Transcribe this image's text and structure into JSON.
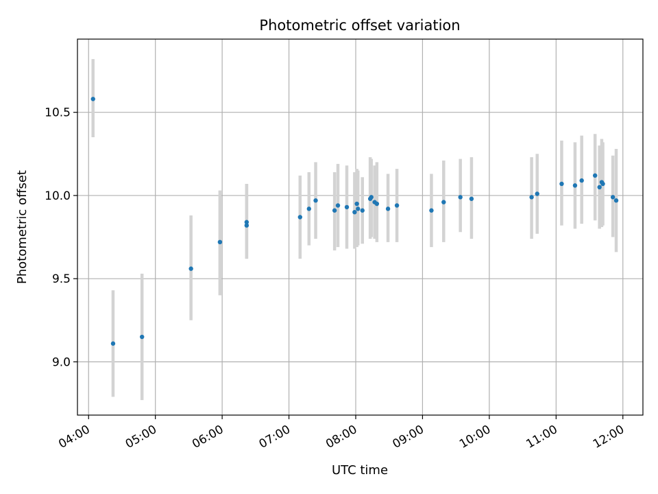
{
  "chart_data": {
    "type": "scatter",
    "title": "Photometric offset variation",
    "xlabel": "UTC time",
    "ylabel": "Photometric offset",
    "x_unit": "hours UTC",
    "xlim": [
      "03:50",
      "12:18"
    ],
    "ylim": [
      8.68,
      10.94
    ],
    "x_ticks": [
      {
        "label": "04:00",
        "value": "04:00"
      },
      {
        "label": "05:00",
        "value": "05:00"
      },
      {
        "label": "06:00",
        "value": "06:00"
      },
      {
        "label": "07:00",
        "value": "07:00"
      },
      {
        "label": "08:00",
        "value": "08:00"
      },
      {
        "label": "09:00",
        "value": "09:00"
      },
      {
        "label": "10:00",
        "value": "10:00"
      },
      {
        "label": "11:00",
        "value": "11:00"
      },
      {
        "label": "12:00",
        "value": "12:00"
      }
    ],
    "y_ticks": [
      {
        "label": "9.0",
        "value": 9.0
      },
      {
        "label": "9.5",
        "value": 9.5
      },
      {
        "label": "10.0",
        "value": 10.0
      },
      {
        "label": "10.5",
        "value": 10.5
      }
    ],
    "grid": true,
    "marker_color": "#1f77b4",
    "errorbar_color": "#d3d3d3",
    "points": [
      {
        "x": "04:04",
        "y": 10.58,
        "yerr_low": 10.35,
        "yerr_high": 10.82
      },
      {
        "x": "04:22",
        "y": 9.11,
        "yerr_low": 8.79,
        "yerr_high": 9.43
      },
      {
        "x": "04:48",
        "y": 9.15,
        "yerr_low": 8.77,
        "yerr_high": 9.53
      },
      {
        "x": "05:32",
        "y": 9.56,
        "yerr_low": 9.25,
        "yerr_high": 9.88
      },
      {
        "x": "05:58",
        "y": 9.72,
        "yerr_low": 9.4,
        "yerr_high": 10.03
      },
      {
        "x": "06:22",
        "y": 9.84,
        "yerr_low": 9.62,
        "yerr_high": 10.07
      },
      {
        "x": "06:22",
        "y": 9.82,
        "yerr_low": 9.62,
        "yerr_high": 10.07
      },
      {
        "x": "07:10",
        "y": 9.87,
        "yerr_low": 9.62,
        "yerr_high": 10.12
      },
      {
        "x": "07:18",
        "y": 9.92,
        "yerr_low": 9.7,
        "yerr_high": 10.14
      },
      {
        "x": "07:24",
        "y": 9.97,
        "yerr_low": 9.74,
        "yerr_high": 10.2
      },
      {
        "x": "07:41",
        "y": 9.91,
        "yerr_low": 9.67,
        "yerr_high": 10.14
      },
      {
        "x": "07:44",
        "y": 9.94,
        "yerr_low": 9.69,
        "yerr_high": 10.19
      },
      {
        "x": "07:52",
        "y": 9.93,
        "yerr_low": 9.68,
        "yerr_high": 10.18
      },
      {
        "x": "07:59",
        "y": 9.9,
        "yerr_low": 9.68,
        "yerr_high": 10.14
      },
      {
        "x": "08:01",
        "y": 9.95,
        "yerr_low": 9.69,
        "yerr_high": 10.16
      },
      {
        "x": "08:02",
        "y": 9.92,
        "yerr_low": 9.7,
        "yerr_high": 10.15
      },
      {
        "x": "08:06",
        "y": 9.91,
        "yerr_low": 9.71,
        "yerr_high": 10.11
      },
      {
        "x": "08:13",
        "y": 9.98,
        "yerr_low": 9.74,
        "yerr_high": 10.23
      },
      {
        "x": "08:14",
        "y": 9.99,
        "yerr_low": 9.75,
        "yerr_high": 10.22
      },
      {
        "x": "08:17",
        "y": 9.96,
        "yerr_low": 9.74,
        "yerr_high": 10.18
      },
      {
        "x": "08:19",
        "y": 9.95,
        "yerr_low": 9.72,
        "yerr_high": 10.2
      },
      {
        "x": "08:29",
        "y": 9.92,
        "yerr_low": 9.72,
        "yerr_high": 10.13
      },
      {
        "x": "08:37",
        "y": 9.94,
        "yerr_low": 9.72,
        "yerr_high": 10.16
      },
      {
        "x": "09:08",
        "y": 9.91,
        "yerr_low": 9.69,
        "yerr_high": 10.13
      },
      {
        "x": "09:19",
        "y": 9.96,
        "yerr_low": 9.72,
        "yerr_high": 10.21
      },
      {
        "x": "09:34",
        "y": 9.99,
        "yerr_low": 9.78,
        "yerr_high": 10.22
      },
      {
        "x": "09:44",
        "y": 9.98,
        "yerr_low": 9.74,
        "yerr_high": 10.23
      },
      {
        "x": "10:38",
        "y": 9.99,
        "yerr_low": 9.74,
        "yerr_high": 10.23
      },
      {
        "x": "10:43",
        "y": 10.01,
        "yerr_low": 9.77,
        "yerr_high": 10.25
      },
      {
        "x": "11:05",
        "y": 10.07,
        "yerr_low": 9.82,
        "yerr_high": 10.33
      },
      {
        "x": "11:17",
        "y": 10.06,
        "yerr_low": 9.8,
        "yerr_high": 10.32
      },
      {
        "x": "11:23",
        "y": 10.09,
        "yerr_low": 9.83,
        "yerr_high": 10.36
      },
      {
        "x": "11:35",
        "y": 10.12,
        "yerr_low": 9.85,
        "yerr_high": 10.37
      },
      {
        "x": "11:39",
        "y": 10.05,
        "yerr_low": 9.8,
        "yerr_high": 10.3
      },
      {
        "x": "11:41",
        "y": 10.08,
        "yerr_low": 9.81,
        "yerr_high": 10.34
      },
      {
        "x": "11:42",
        "y": 10.07,
        "yerr_low": 9.82,
        "yerr_high": 10.32
      },
      {
        "x": "11:51",
        "y": 9.99,
        "yerr_low": 9.75,
        "yerr_high": 10.24
      },
      {
        "x": "11:54",
        "y": 9.97,
        "yerr_low": 9.66,
        "yerr_high": 10.28
      }
    ]
  }
}
